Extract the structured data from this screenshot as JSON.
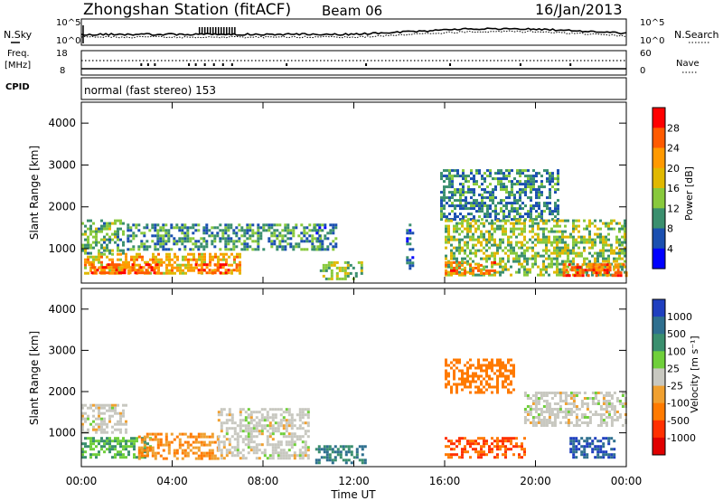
{
  "header": {
    "station": "Zhongshan Station (fitACF)",
    "beam": "Beam 06",
    "date": "16/Jan/2013"
  },
  "top_panels": {
    "nsky_label": "N.Sky",
    "nsearch_label": "N.Search",
    "count_ticks": [
      "10^5",
      "10^0"
    ],
    "freq_label_1": "Freq.",
    "freq_label_2": "[MHz]",
    "freq_ticks": [
      "18",
      "8"
    ],
    "nave_ticks": [
      "60",
      "0"
    ],
    "nave_label": "Nave",
    "cpid_label": "CPID",
    "cpid_text": "normal (fast stereo) 153"
  },
  "axes": {
    "ylabel": "Slant Range [km]",
    "xlabel": "Time UT",
    "xticks": [
      "00:00",
      "04:00",
      "08:00",
      "12:00",
      "16:00",
      "20:00",
      "00:00"
    ],
    "yticks": [
      "1000",
      "2000",
      "3000",
      "4000"
    ]
  },
  "power_scale": {
    "label": "Power [dB]",
    "ticks": [
      "28",
      "24",
      "20",
      "16",
      "12",
      "8",
      "4"
    ],
    "colors": [
      "#ff0000",
      "#ff5a00",
      "#ff9900",
      "#e0b800",
      "#88c93c",
      "#3a8f6e",
      "#1a4fb0",
      "#0000ff"
    ]
  },
  "velocity_scale": {
    "label": "Velocity [m s⁻¹]",
    "ticks": [
      "1000",
      "500",
      "100",
      "25",
      "-25",
      "-100",
      "-500",
      "-1000"
    ],
    "colors": [
      "#1f3fbf",
      "#2e6f8f",
      "#3a8f6e",
      "#6fcf3a",
      "#c8c8c0",
      "#f0a030",
      "#ff7a00",
      "#ff3000",
      "#e00000"
    ]
  },
  "chart_data": [
    {
      "type": "heatmap",
      "ylabel": "Slant Range [km]",
      "colorbar_label": "Power [dB]",
      "x_range": [
        "00:00",
        "24:00"
      ],
      "ylim": [
        180,
        4500
      ],
      "colorbar_range": [
        0,
        32
      ],
      "regions": [
        {
          "t0": 0.0,
          "t1": 1.8,
          "r0": 900,
          "r1": 1700,
          "value": 12
        },
        {
          "t0": 0.0,
          "t1": 7.0,
          "r0": 400,
          "r1": 900,
          "value": 20
        },
        {
          "t0": 0.3,
          "t1": 3.5,
          "r0": 400,
          "r1": 650,
          "value": 26
        },
        {
          "t0": 5.0,
          "t1": 6.8,
          "r0": 400,
          "r1": 650,
          "value": 26
        },
        {
          "t0": 2.0,
          "t1": 10.5,
          "r0": 1000,
          "r1": 1600,
          "value": 10
        },
        {
          "t0": 10.2,
          "t1": 11.2,
          "r0": 1000,
          "r1": 1600,
          "value": 8
        },
        {
          "t0": 10.5,
          "t1": 12.3,
          "r0": 300,
          "r1": 700,
          "value": 14
        },
        {
          "t0": 14.3,
          "t1": 14.6,
          "r0": 500,
          "r1": 1600,
          "value": 6
        },
        {
          "t0": 15.8,
          "t1": 21.0,
          "r0": 1700,
          "r1": 2900,
          "value": 9
        },
        {
          "t0": 16.0,
          "t1": 24.0,
          "r0": 400,
          "r1": 1700,
          "value": 14
        },
        {
          "t0": 16.0,
          "t1": 18.2,
          "r0": 400,
          "r1": 700,
          "value": 24
        },
        {
          "t0": 21.2,
          "t1": 24.0,
          "r0": 350,
          "r1": 650,
          "value": 26
        }
      ]
    },
    {
      "type": "heatmap",
      "ylabel": "Slant Range [km]",
      "colorbar_label": "Velocity [m s⁻¹]",
      "x_range": [
        "00:00",
        "24:00"
      ],
      "ylim": [
        180,
        4500
      ],
      "colorbar_range": [
        -1000,
        1000
      ],
      "regions": [
        {
          "t0": 0.0,
          "t1": 2.0,
          "r0": 1000,
          "r1": 1700,
          "value": 0
        },
        {
          "t0": 0.0,
          "t1": 3.0,
          "r0": 400,
          "r1": 900,
          "value": 100
        },
        {
          "t0": 2.5,
          "t1": 6.0,
          "r0": 400,
          "r1": 1000,
          "value": -100
        },
        {
          "t0": 6.0,
          "t1": 10.0,
          "r0": 400,
          "r1": 1600,
          "value": 0
        },
        {
          "t0": 10.3,
          "t1": 12.5,
          "r0": 300,
          "r1": 700,
          "value": 500
        },
        {
          "t0": 16.0,
          "t1": 19.5,
          "r0": 400,
          "r1": 900,
          "value": -500
        },
        {
          "t0": 16.0,
          "t1": 19.0,
          "r0": 2000,
          "r1": 2800,
          "value": -200
        },
        {
          "t0": 19.5,
          "t1": 24.0,
          "r0": 1200,
          "r1": 2000,
          "value": 0
        },
        {
          "t0": 21.5,
          "t1": 23.5,
          "r0": 400,
          "r1": 900,
          "value": 1000
        }
      ]
    }
  ]
}
